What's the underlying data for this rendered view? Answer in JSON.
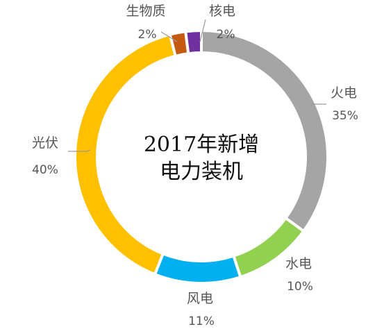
{
  "chart_data": {
    "type": "pie",
    "donut": true,
    "title_lines": [
      "2017年新增",
      "电力装机"
    ],
    "start_angle_deg": 0,
    "direction": "clockwise",
    "slices": [
      {
        "label": "火电",
        "value": 35,
        "pct_label": "35%",
        "color": "#a5a5a5"
      },
      {
        "label": "水电",
        "value": 10,
        "pct_label": "10%",
        "color": "#92d050"
      },
      {
        "label": "风电",
        "value": 11,
        "pct_label": "11%",
        "color": "#00b0f0"
      },
      {
        "label": "光伏",
        "value": 40,
        "pct_label": "40%",
        "color": "#ffc000"
      },
      {
        "label": "生物质",
        "value": 2,
        "pct_label": "2%",
        "color": "#c55a11"
      },
      {
        "label": "核电",
        "value": 2,
        "pct_label": "2%",
        "color": "#7030a0"
      }
    ],
    "legend": "none"
  }
}
